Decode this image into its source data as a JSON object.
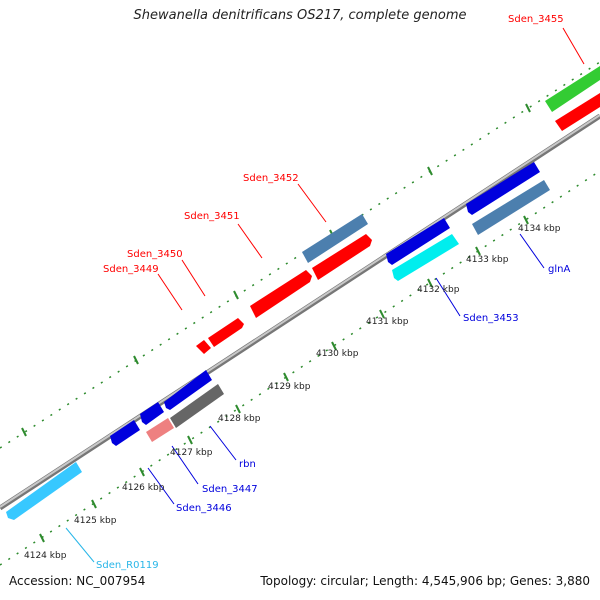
{
  "title": "Shewanella denitrificans OS217, complete genome",
  "accession": "Accession: NC_007954",
  "stats": "Topology: circular; Length: 4,545,906 bp; Genes: 3,880",
  "colors": {
    "background": "#ffffff",
    "backbone": "#9a9a9a",
    "tick": "#2e8b2e",
    "forward_gene": "#ff0000",
    "reverse_gene": "#0000dd",
    "rRNA_gene": "#37c8ff",
    "label_cyan": "#29b6e8",
    "steel": "#4c7fae",
    "grey": "#666666",
    "pink": "#ee8080",
    "green": "#33cc33"
  },
  "scale_labels": [
    "4124 kbp",
    "4125 kbp",
    "4126 kbp",
    "4127 kbp",
    "4128 kbp",
    "4129 kbp",
    "4130 kbp",
    "4131 kbp",
    "4132 kbp",
    "4133 kbp",
    "4134 kbp"
  ],
  "gene_labels": {
    "sden_3455": "Sden_3455",
    "sden_3452": "Sden_3452",
    "sden_3451": "Sden_3451",
    "sden_3450": "Sden_3450",
    "sden_3449": "Sden_3449",
    "sden_3453": "Sden_3453",
    "glnA": "glnA",
    "rbn": "rbn",
    "sden_3447": "Sden_3447",
    "sden_3446": "Sden_3446",
    "sden_R0119": "Sden_R0119"
  }
}
